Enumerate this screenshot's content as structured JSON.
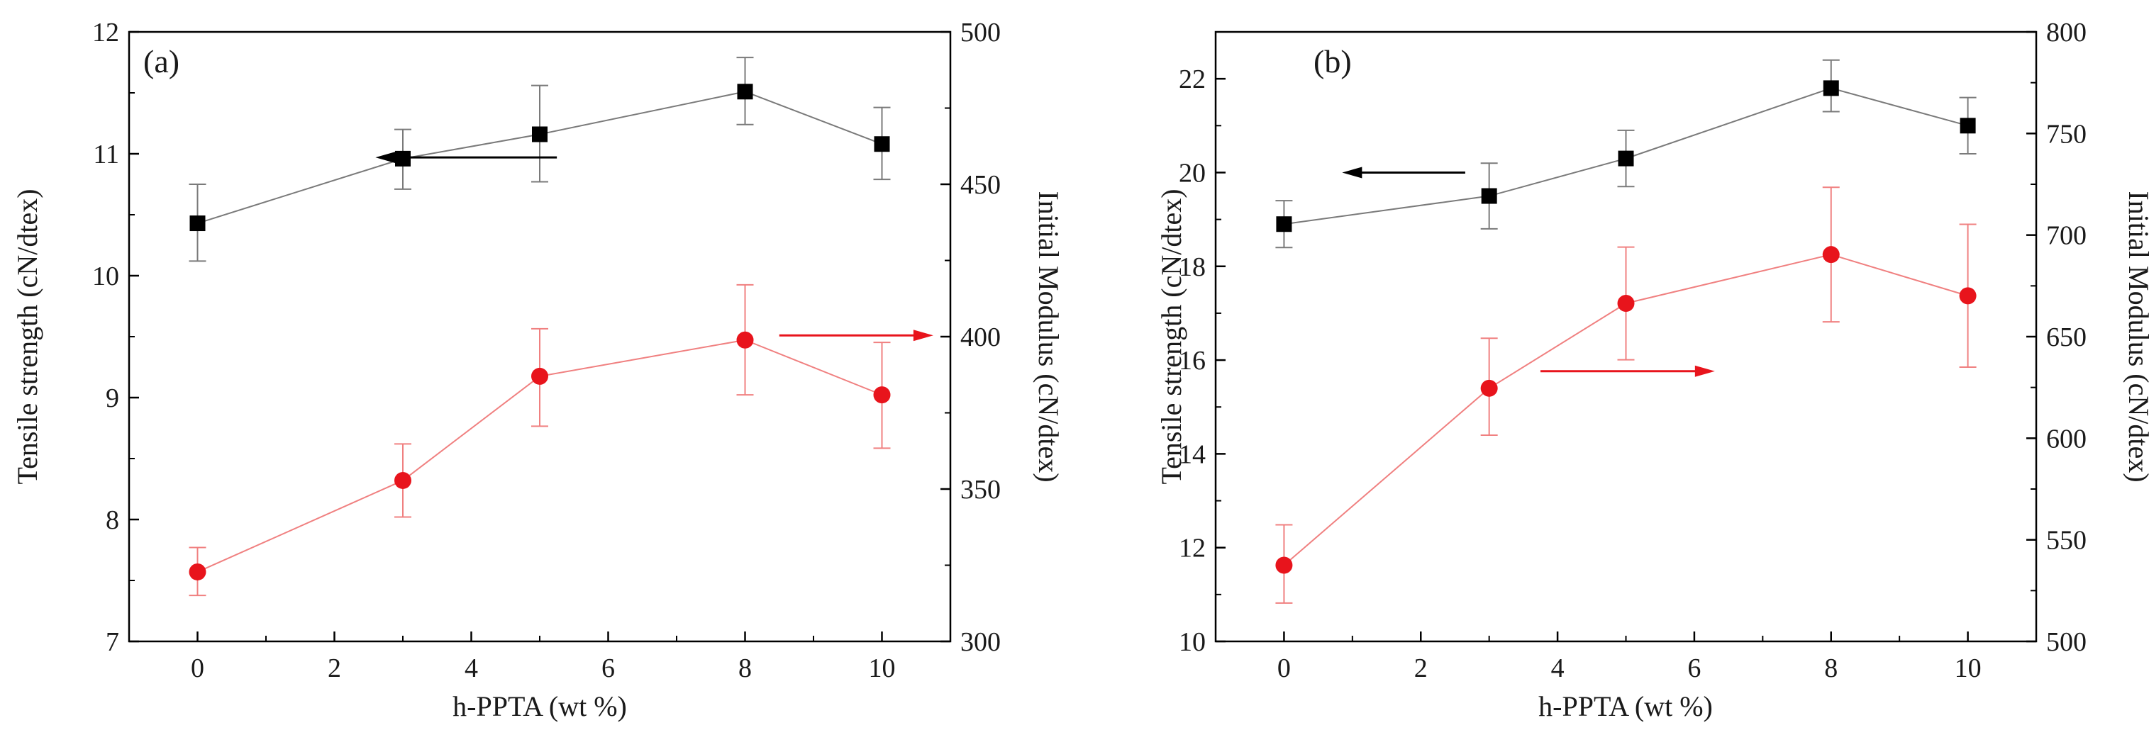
{
  "chart_data": [
    {
      "type": "line",
      "panel_label": "(a)",
      "xlabel": "h-PPTA (wt %)",
      "ylabel_left": "Tensile strength (cN/dtex)",
      "ylabel_right": "Initial Modulus (cN/dtex)",
      "xlim": [
        -1,
        11
      ],
      "ylim_left": [
        7,
        12
      ],
      "ylim_right": [
        300,
        500
      ],
      "x_ticks": [
        0,
        2,
        4,
        6,
        8,
        10
      ],
      "y_ticks_left": [
        7,
        8,
        9,
        10,
        11,
        12
      ],
      "y_ticks_right": [
        300,
        350,
        400,
        450,
        500
      ],
      "series": [
        {
          "name": "Tensile strength",
          "axis": "left",
          "color": "#000000",
          "line_color": "#7a7a7a",
          "marker": "square",
          "x": [
            0,
            3,
            5,
            8,
            10
          ],
          "y": [
            10.43,
            10.96,
            11.16,
            11.51,
            11.08
          ],
          "err_low": [
            10.12,
            10.71,
            10.77,
            11.24,
            10.79
          ],
          "err_high": [
            10.75,
            11.2,
            11.56,
            11.79,
            11.38
          ]
        },
        {
          "name": "Initial Modulus",
          "axis": "right",
          "color": "#e8141c",
          "line_color": "#f08080",
          "marker": "circle",
          "x": [
            0,
            3,
            5,
            8,
            10
          ],
          "y": [
            322.8,
            352.8,
            387.0,
            398.9,
            380.9
          ],
          "err_low": [
            315.1,
            340.8,
            370.6,
            380.9,
            363.4
          ],
          "err_high": [
            330.8,
            364.8,
            402.6,
            417.0,
            398.1
          ]
        }
      ],
      "annotations": [
        {
          "type": "arrow",
          "direction": "left",
          "color": "#000000",
          "x_from": 5.25,
          "x_to": 2.6,
          "y": 10.97,
          "axis": "left"
        },
        {
          "type": "arrow",
          "direction": "right",
          "color": "#e8141c",
          "x_from": 8.5,
          "x_to": 10.75,
          "y": 400.4,
          "axis": "right"
        }
      ]
    },
    {
      "type": "line",
      "panel_label": "(b)",
      "xlabel": "h-PPTA (wt %)",
      "ylabel_left": "Tensile strength (cN/dtex)",
      "ylabel_right": "Initial Modulus (cN/dtex)",
      "xlim": [
        -1,
        11
      ],
      "ylim_left": [
        10,
        23
      ],
      "ylim_right": [
        500,
        800
      ],
      "x_ticks": [
        0,
        2,
        4,
        6,
        8,
        10
      ],
      "y_ticks_left": [
        10,
        12,
        14,
        16,
        18,
        20,
        22
      ],
      "y_ticks_right": [
        500,
        550,
        600,
        650,
        700,
        750,
        800
      ],
      "series": [
        {
          "name": "Tensile strength",
          "axis": "left",
          "color": "#000000",
          "line_color": "#7a7a7a",
          "marker": "square",
          "x": [
            0,
            3,
            5,
            8,
            10
          ],
          "y": [
            18.9,
            19.5,
            20.3,
            21.8,
            21.0
          ],
          "err_low": [
            18.4,
            18.8,
            19.7,
            21.3,
            20.4
          ],
          "err_high": [
            19.4,
            20.2,
            20.9,
            22.4,
            21.6
          ]
        },
        {
          "name": "Initial Modulus",
          "axis": "right",
          "color": "#e8141c",
          "line_color": "#f08080",
          "marker": "circle",
          "x": [
            0,
            3,
            5,
            8,
            10
          ],
          "y": [
            537.5,
            624.6,
            666.4,
            690.4,
            670.1
          ],
          "err_low": [
            518.9,
            601.5,
            638.6,
            657.3,
            635.0
          ],
          "err_high": [
            557.4,
            649.2,
            694.1,
            723.5,
            705.3
          ]
        }
      ],
      "annotations": [
        {
          "type": "arrow",
          "direction": "left",
          "color": "#000000",
          "x_from": 2.65,
          "x_to": 0.85,
          "y": 20.0,
          "axis": "left"
        },
        {
          "type": "arrow",
          "direction": "right",
          "color": "#e8141c",
          "x_from": 3.75,
          "x_to": 6.3,
          "y": 633.0,
          "axis": "right"
        }
      ]
    }
  ]
}
